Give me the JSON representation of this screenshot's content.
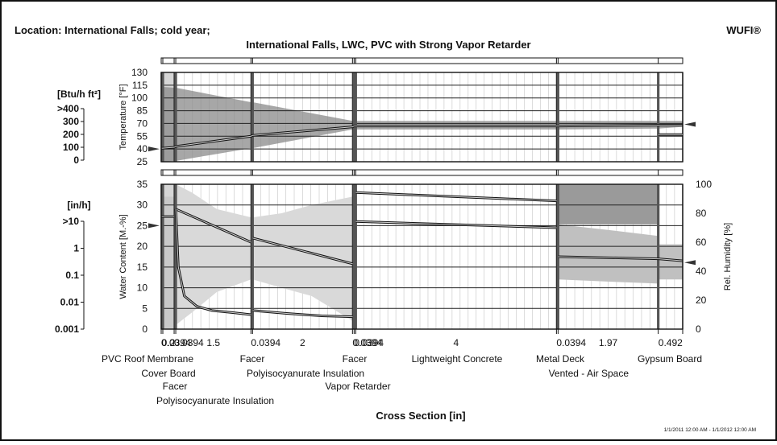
{
  "header": {
    "location": "Location: International Falls; cold year;",
    "brand": "WUFI®",
    "title": "International Falls, LWC, PVC with Strong Vapor Retarder"
  },
  "footer": {
    "xlabel": "Cross Section [in]",
    "period": "1/1/2011 12:00 AM - 1/1/2012 12:00 AM"
  },
  "left_scales": {
    "heat_flux": {
      "unit": "[Btu/h ft²]",
      "ticks": [
        ">400",
        "300",
        "200",
        "100",
        "0"
      ]
    },
    "flow": {
      "unit": "[in/h]",
      "ticks": [
        ">10",
        "1",
        "0.1",
        "0.01",
        "0.001"
      ]
    }
  },
  "layers": [
    {
      "thickness": "0.0394",
      "tick_text": "0.0394",
      "name": "PVC Roof Membrane",
      "tint": "#c9c9c9"
    },
    {
      "thickness": "0.2",
      "tick_text": "0.2",
      "name": "Cover Board",
      "tint": "#d6d6d6"
    },
    {
      "thickness": "0.0394",
      "tick_text": "0.0394",
      "name": "Facer",
      "tint": "#cfcfcf"
    },
    {
      "thickness": "1.5",
      "tick_text": "1.5",
      "name": "Polyisocyanurate Insulation",
      "tint": "#ffffff"
    },
    {
      "thickness": "0.0394",
      "tick_text": "0.0394",
      "name": "Facer",
      "tint": "#cfcfcf"
    },
    {
      "thickness": "2",
      "tick_text": "2",
      "name": "Polyisocyanurate Insulation",
      "tint": "#ffffff"
    },
    {
      "thickness": "0.0394",
      "tick_text": "0.0394",
      "name": "Facer",
      "tint": "#cfcfcf"
    },
    {
      "thickness": "0.0394",
      "tick_text": "0.0394",
      "name": "Vapor Retarder",
      "tint": "#c9c9c9"
    },
    {
      "thickness": "4",
      "tick_text": "4",
      "name": "Lightweight Concrete",
      "tint": "#ffffff"
    },
    {
      "thickness": "0.0394",
      "tick_text": "0.0394",
      "name": "Metal Deck",
      "tint": "#c9c9c9"
    },
    {
      "thickness": "1.97",
      "tick_text": "1.97",
      "name": "Vented - Air Space",
      "tint": "#ffffff"
    },
    {
      "thickness": "0.492",
      "tick_text": "0.492",
      "name": "Gypsum Board",
      "tint": "#ffffff"
    }
  ],
  "chart_data": [
    {
      "type": "area",
      "panel": "temperature",
      "ylabel": "Temperature [°F]",
      "ylim": [
        25,
        130
      ],
      "yticks": [
        "130",
        "115",
        "100",
        "85",
        "70",
        "55",
        "40",
        "25"
      ],
      "x_position": [
        0,
        0.04,
        0.24,
        0.28,
        1.78,
        1.82,
        3.82,
        3.86,
        3.9,
        7.9,
        7.94,
        9.91,
        10.4
      ],
      "series": [
        {
          "role": "max",
          "values": [
            113,
            113,
            112,
            112,
            95,
            95,
            73,
            73,
            73,
            73,
            73,
            73,
            73
          ]
        },
        {
          "role": "mean",
          "values": [
            41,
            41,
            42,
            43,
            55,
            56,
            66,
            67,
            67,
            67,
            67,
            68,
            68
          ]
        },
        {
          "role": "min",
          "values": [
            25,
            25,
            26,
            26,
            41,
            41,
            63,
            63,
            63,
            63,
            63,
            64,
            66
          ]
        }
      ],
      "marker_left": 40,
      "marker_right": 69,
      "grid": true
    },
    {
      "type": "line",
      "panel": "moisture",
      "ylabel": "Water Content [M.-%]",
      "ylabel2": "Rel. Humidity [%]",
      "ylim": [
        0,
        35
      ],
      "yticks": [
        "35",
        "30",
        "25",
        "20",
        "15",
        "10",
        "5",
        "0"
      ],
      "ylim2": [
        0,
        100
      ],
      "yticks2": [
        "100",
        "80",
        "60",
        "40",
        "20",
        "0"
      ],
      "water_content": [
        {
          "x": [
            0,
            0.24
          ],
          "values": [
            27.2,
            27.2
          ]
        },
        {
          "x": [
            0.28,
            1.78
          ],
          "values": [
            29,
            21
          ]
        },
        {
          "x": [
            1.82,
            3.82
          ],
          "values": [
            22,
            15.8
          ]
        },
        {
          "x": [
            3.9,
            7.9
          ],
          "values": [
            33,
            31
          ]
        },
        {
          "x": [
            7.94,
            9.91
          ],
          "values": [
            17.5,
            17
          ]
        },
        {
          "x": [
            9.91,
            10.4
          ],
          "values": [
            17,
            16.5
          ]
        }
      ],
      "relative_humidity": [
        {
          "x": [
            0.28,
            0.33,
            0.45,
            0.7,
            1.0,
            1.4,
            1.78
          ],
          "values": [
            29,
            15,
            8,
            5.5,
            4.5,
            4,
            3.5
          ]
        },
        {
          "x": [
            1.82,
            2.5,
            3.2,
            3.82
          ],
          "values": [
            4.5,
            3.8,
            3.2,
            3
          ]
        },
        {
          "x": [
            3.9,
            7.9
          ],
          "values": [
            26,
            24.5
          ]
        },
        {
          "x": [
            9.91,
            10.4
          ],
          "values": [
            47,
            47
          ]
        }
      ],
      "marker_left": 25,
      "marker_right": 46,
      "grid": true
    }
  ]
}
